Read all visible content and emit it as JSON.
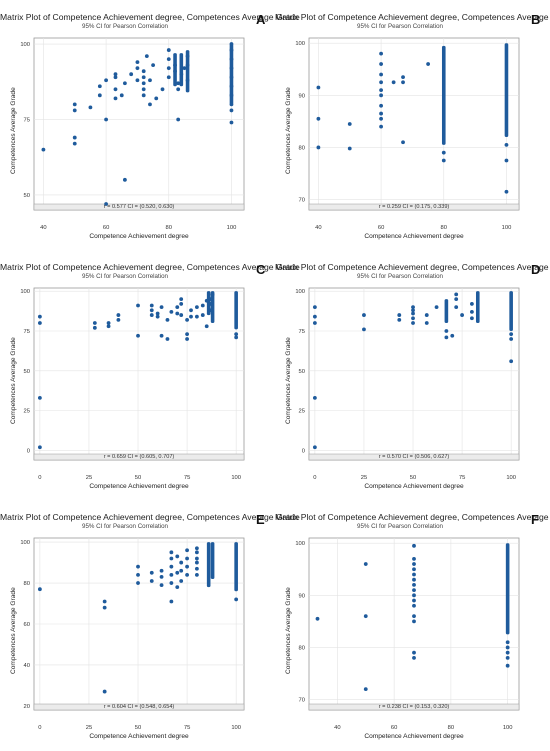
{
  "colors": {
    "point": "#1f5b9c",
    "grid": "#e3e3e3",
    "frame": "#9a9a9a",
    "strip": "#ebebeb"
  },
  "chart_data": [
    {
      "panel": "A",
      "type": "scatter",
      "title": "Matrix Plot of Competence Achievement degree, Competences Average Grade",
      "subtitle": "95% CI for Pearson Correlation",
      "xlabel": "Competence Achievement degree",
      "ylabel": "Competences Average Grade",
      "stat": "r = 0.577  CI = (0.520, 0.630)",
      "xlim": [
        37,
        104
      ],
      "ylim": [
        45,
        102
      ],
      "xticks": [
        40,
        60,
        80,
        100
      ],
      "yticks": [
        50,
        75,
        100
      ],
      "points": [
        [
          40,
          65
        ],
        [
          50,
          67
        ],
        [
          50,
          69
        ],
        [
          50,
          78
        ],
        [
          50,
          80
        ],
        [
          55,
          79
        ],
        [
          58,
          83
        ],
        [
          58,
          86
        ],
        [
          60,
          47
        ],
        [
          60,
          75
        ],
        [
          60,
          88
        ],
        [
          63,
          82
        ],
        [
          63,
          85
        ],
        [
          63,
          89
        ],
        [
          63,
          90
        ],
        [
          65,
          83
        ],
        [
          66,
          87
        ],
        [
          68,
          90
        ],
        [
          70,
          88
        ],
        [
          70,
          92
        ],
        [
          70,
          94
        ],
        [
          72,
          83
        ],
        [
          72,
          85
        ],
        [
          72,
          87
        ],
        [
          72,
          89
        ],
        [
          72,
          91
        ],
        [
          73,
          96
        ],
        [
          74,
          88
        ],
        [
          74,
          80
        ],
        [
          75,
          93
        ],
        [
          76,
          82
        ],
        [
          78,
          85
        ],
        [
          80,
          89
        ],
        [
          80,
          92
        ],
        [
          80,
          95
        ],
        [
          80,
          98
        ],
        [
          82,
          91
        ],
        [
          82,
          93
        ],
        [
          83,
          85
        ],
        [
          83,
          87
        ],
        [
          83,
          75
        ],
        [
          84,
          90
        ],
        [
          85,
          92
        ],
        [
          86,
          88
        ],
        [
          86,
          93
        ],
        [
          86,
          96
        ],
        [
          100,
          74
        ],
        [
          100,
          78
        ],
        [
          100,
          80
        ],
        [
          100,
          83
        ],
        [
          100,
          86
        ],
        [
          100,
          89
        ],
        [
          100,
          92
        ],
        [
          100,
          95
        ],
        [
          100,
          98
        ],
        [
          100,
          100
        ],
        [
          66,
          55
        ]
      ],
      "columns": [
        [
          82,
          86,
          80,
          97
        ],
        [
          84,
          86,
          80,
          97
        ],
        [
          86,
          84,
          83,
          98
        ],
        [
          100,
          80,
          84,
          100
        ]
      ]
    },
    {
      "panel": "B",
      "type": "scatter",
      "title": "Matrix Plot of Competence Achievement degree, Competences Average Grade",
      "subtitle": "95% CI for Pearson Correlation",
      "xlabel": "Competence Achievement degree",
      "ylabel": "Competences Average Grade",
      "stat": "r = 0.259  CI = (0.175, 0.339)",
      "xlim": [
        37,
        104
      ],
      "ylim": [
        68,
        101
      ],
      "xticks": [
        40,
        60,
        80,
        100
      ],
      "yticks": [
        70,
        80,
        90,
        100
      ],
      "points": [
        [
          40,
          80
        ],
        [
          40,
          85.5
        ],
        [
          40,
          91.5
        ],
        [
          50,
          79.8
        ],
        [
          50,
          84.5
        ],
        [
          60,
          84
        ],
        [
          60,
          85.5
        ],
        [
          60,
          86.5
        ],
        [
          60,
          88
        ],
        [
          60,
          90
        ],
        [
          60,
          91
        ],
        [
          60,
          92.5
        ],
        [
          60,
          94
        ],
        [
          60,
          96
        ],
        [
          60,
          98
        ],
        [
          64,
          92.5
        ],
        [
          67,
          81
        ],
        [
          67,
          92.5
        ],
        [
          67,
          93.5
        ],
        [
          75,
          96
        ],
        [
          80,
          77.5
        ],
        [
          80,
          79
        ],
        [
          100,
          71.5
        ],
        [
          100,
          77.5
        ],
        [
          100,
          80.5
        ]
      ],
      "columns": [
        [
          80,
          80.5,
          99.5
        ],
        [
          100,
          82,
          100
        ]
      ]
    },
    {
      "panel": "C",
      "type": "scatter",
      "title": "Matrix Plot of Competence Achievement degree, Competences Average Grade",
      "subtitle": "95% CI for Pearson Correlation",
      "xlabel": "Competence Achievement degree",
      "ylabel": "Competences Average Grade",
      "stat": "r = 0.659  CI = (0.605, 0.707)",
      "xlim": [
        -3,
        104
      ],
      "ylim": [
        -6,
        102
      ],
      "xticks": [
        0,
        25,
        50,
        75,
        100
      ],
      "yticks": [
        0,
        25,
        50,
        75,
        100
      ],
      "points": [
        [
          0,
          2
        ],
        [
          0,
          33
        ],
        [
          0,
          80
        ],
        [
          0,
          84
        ],
        [
          28,
          77
        ],
        [
          28,
          80
        ],
        [
          35,
          78
        ],
        [
          35,
          80
        ],
        [
          40,
          82
        ],
        [
          40,
          85
        ],
        [
          50,
          72
        ],
        [
          50,
          91
        ],
        [
          57,
          85
        ],
        [
          57,
          88
        ],
        [
          57,
          91
        ],
        [
          60,
          84
        ],
        [
          60,
          86
        ],
        [
          62,
          72
        ],
        [
          62,
          90
        ],
        [
          65,
          70
        ],
        [
          65,
          82
        ],
        [
          67,
          87
        ],
        [
          70,
          86
        ],
        [
          70,
          90
        ],
        [
          72,
          85
        ],
        [
          72,
          92
        ],
        [
          72,
          95
        ],
        [
          75,
          70
        ],
        [
          75,
          73
        ],
        [
          75,
          82
        ],
        [
          77,
          84
        ],
        [
          77,
          88
        ],
        [
          80,
          84
        ],
        [
          80,
          90
        ],
        [
          83,
          91
        ],
        [
          83,
          85
        ],
        [
          85,
          78
        ],
        [
          85,
          94
        ],
        [
          87,
          88
        ],
        [
          87,
          92
        ],
        [
          87,
          95
        ],
        [
          88,
          98
        ],
        [
          100,
          71
        ],
        [
          100,
          73
        ]
      ],
      "columns": [
        [
          86,
          85,
          100
        ],
        [
          88,
          80,
          100
        ],
        [
          100,
          76,
          100
        ]
      ]
    },
    {
      "panel": "D",
      "type": "scatter",
      "title": "Matrix Plot of Competence Achievement degree, Competences Average Grade",
      "subtitle": "95% CI for Pearson Correlation",
      "xlabel": "Competence Achievement degree",
      "ylabel": "Competences Average Grade",
      "stat": "r = 0.570  CI = (0.506, 0.627)",
      "xlim": [
        -3,
        104
      ],
      "ylim": [
        -6,
        102
      ],
      "xticks": [
        0,
        25,
        50,
        75,
        100
      ],
      "yticks": [
        0,
        25,
        50,
        75,
        100
      ],
      "points": [
        [
          0,
          2
        ],
        [
          0,
          33
        ],
        [
          0,
          80
        ],
        [
          0,
          84
        ],
        [
          0,
          90
        ],
        [
          25,
          76
        ],
        [
          25,
          85
        ],
        [
          43,
          82
        ],
        [
          43,
          85
        ],
        [
          50,
          80
        ],
        [
          50,
          83
        ],
        [
          50,
          86
        ],
        [
          50,
          88
        ],
        [
          50,
          90
        ],
        [
          57,
          80
        ],
        [
          57,
          85
        ],
        [
          62,
          90
        ],
        [
          67,
          71
        ],
        [
          67,
          75
        ],
        [
          70,
          72
        ],
        [
          72,
          90
        ],
        [
          72,
          95
        ],
        [
          72,
          98
        ],
        [
          75,
          85
        ],
        [
          80,
          83
        ],
        [
          80,
          87
        ],
        [
          80,
          92
        ],
        [
          100,
          56
        ],
        [
          100,
          70
        ],
        [
          100,
          73
        ]
      ],
      "columns": [
        [
          67,
          80,
          95
        ],
        [
          83,
          80,
          100
        ],
        [
          100,
          75,
          100
        ]
      ]
    },
    {
      "panel": "E",
      "type": "scatter",
      "title": "Matrix Plot of Competence Achievement degree, Competences Average Grade",
      "subtitle": "95% CI for Pearson Correlation",
      "xlabel": "Competence Achievement degree",
      "ylabel": "Competences Average Grade",
      "stat": "r = 0.604  CI = (0.548, 0.654)",
      "xlim": [
        -3,
        104
      ],
      "ylim": [
        18,
        102
      ],
      "xticks": [
        0,
        25,
        50,
        75,
        100
      ],
      "yticks": [
        20,
        40,
        60,
        80,
        100
      ],
      "points": [
        [
          0,
          77
        ],
        [
          33,
          27
        ],
        [
          33,
          68
        ],
        [
          33,
          71
        ],
        [
          50,
          80
        ],
        [
          50,
          84
        ],
        [
          50,
          88
        ],
        [
          57,
          81
        ],
        [
          57,
          85
        ],
        [
          62,
          79
        ],
        [
          62,
          83
        ],
        [
          62,
          86
        ],
        [
          67,
          71
        ],
        [
          67,
          80
        ],
        [
          67,
          84
        ],
        [
          67,
          88
        ],
        [
          67,
          92
        ],
        [
          67,
          95
        ],
        [
          70,
          78
        ],
        [
          70,
          85
        ],
        [
          70,
          93
        ],
        [
          72,
          81
        ],
        [
          72,
          86
        ],
        [
          72,
          90
        ],
        [
          75,
          84
        ],
        [
          75,
          88
        ],
        [
          75,
          92
        ],
        [
          75,
          96
        ],
        [
          80,
          84
        ],
        [
          80,
          87
        ],
        [
          80,
          90
        ],
        [
          80,
          92
        ],
        [
          80,
          95
        ],
        [
          80,
          97
        ],
        [
          100,
          72
        ]
      ],
      "columns": [
        [
          86,
          78,
          100
        ],
        [
          88,
          82,
          100
        ],
        [
          100,
          76,
          100
        ]
      ]
    },
    {
      "panel": "F",
      "type": "scatter",
      "title": "Matrix Plot of Competence Achievement degree, Competences Average Grade",
      "subtitle": "95% CI for Pearson Correlation",
      "xlabel": "Competence Achievement degree",
      "ylabel": "Competences Average Grade",
      "stat": "r = 0.238  CI = (0.153, 0.320)",
      "xlim": [
        30,
        104
      ],
      "ylim": [
        68,
        101
      ],
      "xticks": [
        40,
        60,
        80,
        100
      ],
      "yticks": [
        70,
        80,
        90,
        100
      ],
      "points": [
        [
          33,
          85.5
        ],
        [
          50,
          72
        ],
        [
          50,
          86
        ],
        [
          50,
          96
        ],
        [
          67,
          78
        ],
        [
          67,
          79
        ],
        [
          67,
          85
        ],
        [
          67,
          86
        ],
        [
          67,
          88
        ],
        [
          67,
          89
        ],
        [
          67,
          90
        ],
        [
          67,
          91
        ],
        [
          67,
          92
        ],
        [
          67,
          93
        ],
        [
          67,
          94
        ],
        [
          67,
          95
        ],
        [
          67,
          96
        ],
        [
          67,
          97
        ],
        [
          67,
          99.5
        ],
        [
          100,
          76.5
        ],
        [
          100,
          78
        ],
        [
          100,
          79
        ],
        [
          100,
          80
        ],
        [
          100,
          81
        ]
      ],
      "columns": [
        [
          100,
          82.5,
          100
        ]
      ]
    }
  ]
}
